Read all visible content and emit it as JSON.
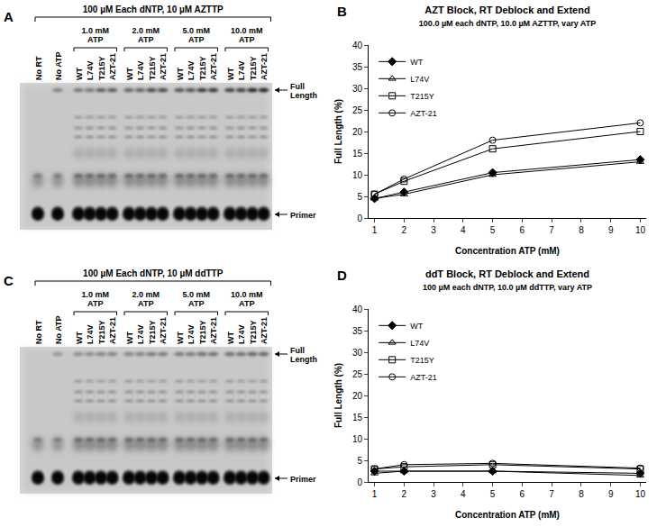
{
  "gels": [
    {
      "panel": "A",
      "header": "100 µM Each dNTP, 10 µM AZTTP",
      "control_lanes": [
        "No RT",
        "No ATP"
      ],
      "groups": [
        {
          "label": [
            "1.0 mM",
            "ATP"
          ],
          "lanes": [
            "WT",
            "L74V",
            "T215Y",
            "AZT-21"
          ]
        },
        {
          "label": [
            "2.0 mM",
            "ATP"
          ],
          "lanes": [
            "WT",
            "L74V",
            "T215Y",
            "AZT-21"
          ]
        },
        {
          "label": [
            "5.0 mM",
            "ATP"
          ],
          "lanes": [
            "WT",
            "L74V",
            "T215Y",
            "AZT-21"
          ]
        },
        {
          "label": [
            "10.0 mM",
            "ATP"
          ],
          "lanes": [
            "WT",
            "L74V",
            "T215Y",
            "AZT-21"
          ]
        }
      ],
      "markers": {
        "top": [
          "Full",
          "Length"
        ],
        "bottom": [
          "Primer"
        ]
      }
    },
    {
      "panel": "C",
      "header": "100 µM Each dNTP, 10 µM ddTTP",
      "control_lanes": [
        "No RT",
        "No ATP"
      ],
      "groups": [
        {
          "label": [
            "1.0 mM",
            "ATP"
          ],
          "lanes": [
            "WT",
            "L74V",
            "T215Y",
            "AZT-21"
          ]
        },
        {
          "label": [
            "2.0 mM",
            "ATP"
          ],
          "lanes": [
            "WT",
            "L74V",
            "T215Y",
            "AZT-21"
          ]
        },
        {
          "label": [
            "5.0 mM",
            "ATP"
          ],
          "lanes": [
            "WT",
            "L74V",
            "T215Y",
            "AZT-21"
          ]
        },
        {
          "label": [
            "10.0 mM",
            "ATP"
          ],
          "lanes": [
            "WT",
            "L74V",
            "T215Y",
            "AZT-21"
          ]
        }
      ],
      "markers": {
        "top": [
          "Full",
          "Length"
        ],
        "bottom": [
          "Primer"
        ]
      }
    }
  ],
  "chart_data": [
    {
      "panel": "B",
      "type": "line",
      "title": "AZT Block, RT Deblock and Extend",
      "subtitle": "100.0 µM each dNTP, 10.0 µM AZTTP, vary ATP",
      "x_label": "Concentration ATP (mM)",
      "y_label": "Full Length (%)",
      "x": [
        1,
        2,
        5,
        10
      ],
      "series": [
        {
          "name": "WT",
          "color": "#000000",
          "marker": "diamond",
          "values": [
            4.5,
            6,
            10.5,
            13.5
          ]
        },
        {
          "name": "L74V",
          "color": "#000000",
          "marker": "triangle-up-open",
          "values": [
            4.5,
            5.5,
            10,
            13
          ]
        },
        {
          "name": "T215Y",
          "color": "#000000",
          "marker": "square-open",
          "values": [
            5.5,
            8.5,
            16,
            20
          ]
        },
        {
          "name": "AZT-21",
          "color": "#000000",
          "marker": "circle-open",
          "values": [
            5.5,
            9,
            18,
            22
          ]
        }
      ],
      "xlim": [
        0.8,
        10.2
      ],
      "ylim": [
        0,
        40
      ],
      "xticks": [
        1,
        2,
        3,
        4,
        5,
        6,
        7,
        8,
        9,
        10
      ],
      "yticks": [
        0,
        5,
        10,
        15,
        20,
        25,
        30,
        35,
        40
      ],
      "legend": "upper left",
      "grid": false
    },
    {
      "panel": "D",
      "type": "line",
      "title": "ddT Block, RT Deblock and Extend",
      "subtitle": "100 µM each dNTP, 10.0 µM ddTTP, vary ATP",
      "x_label": "Concentration ATP (mM)",
      "y_label": "Full Length (%)",
      "x": [
        1,
        2,
        5,
        10
      ],
      "series": [
        {
          "name": "WT",
          "color": "#000000",
          "marker": "diamond",
          "values": [
            2.5,
            2.5,
            2.5,
            2
          ]
        },
        {
          "name": "L74V",
          "color": "#000000",
          "marker": "triangle-up-open",
          "values": [
            2,
            2.5,
            2.5,
            1.5
          ]
        },
        {
          "name": "T215Y",
          "color": "#000000",
          "marker": "square-open",
          "values": [
            3,
            3.5,
            4,
            3
          ]
        },
        {
          "name": "AZT-21",
          "color": "#000000",
          "marker": "circle-open",
          "values": [
            3,
            4,
            4.3,
            3.2
          ]
        }
      ],
      "xlim": [
        0.8,
        10.2
      ],
      "ylim": [
        0,
        40
      ],
      "xticks": [
        1,
        2,
        3,
        4,
        5,
        6,
        7,
        8,
        9,
        10
      ],
      "yticks": [
        0,
        5,
        10,
        15,
        20,
        25,
        30,
        35,
        40
      ],
      "legend": "upper left",
      "grid": false
    }
  ]
}
